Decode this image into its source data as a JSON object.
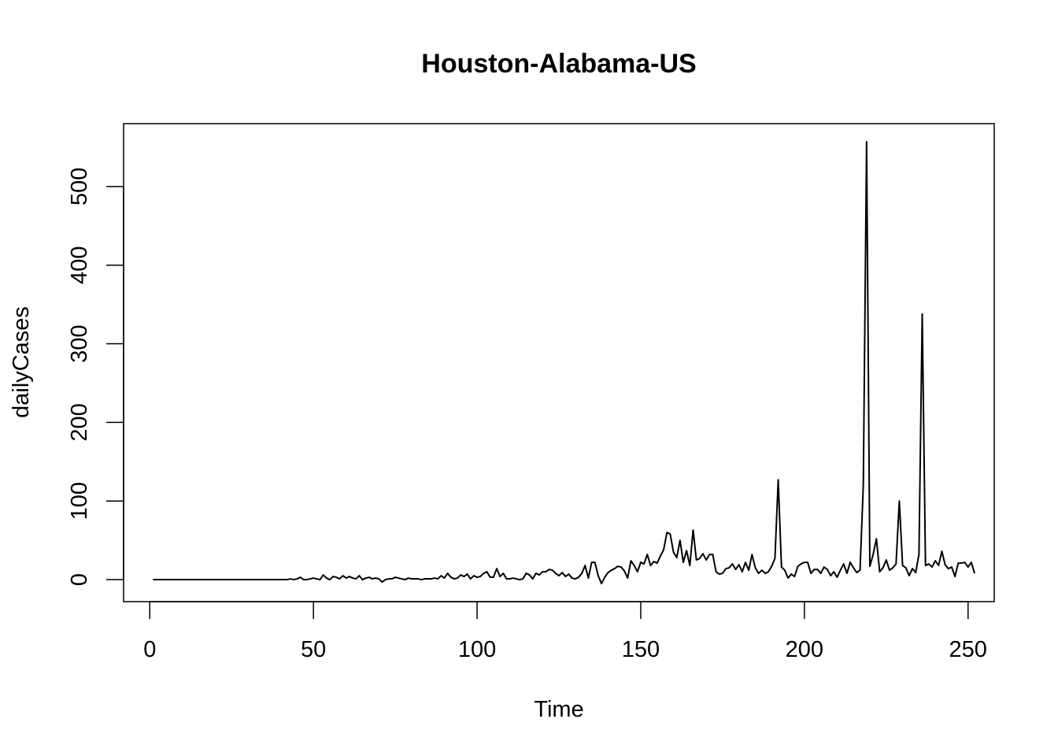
{
  "chart_data": {
    "type": "line",
    "title": "Houston-Alabama-US",
    "xlabel": "Time",
    "ylabel": "dailyCases",
    "xlim": [
      -8,
      258
    ],
    "ylim": [
      -28,
      580
    ],
    "x_ticks": [
      0,
      50,
      100,
      150,
      200,
      250
    ],
    "y_ticks": [
      0,
      100,
      200,
      300,
      400,
      500
    ],
    "grid": false,
    "legend": "none",
    "line_color": "#000000",
    "series": [
      {
        "x_start": 1,
        "values": [
          0,
          0,
          0,
          0,
          0,
          0,
          0,
          0,
          0,
          0,
          0,
          0,
          0,
          0,
          0,
          0,
          0,
          0,
          0,
          0,
          0,
          0,
          0,
          0,
          0,
          0,
          0,
          0,
          0,
          0,
          0,
          0,
          0,
          0,
          0,
          0,
          0,
          0,
          0,
          0,
          0,
          0,
          1,
          0,
          1,
          3,
          0,
          0,
          1,
          2,
          1,
          0,
          6,
          2,
          0,
          4,
          3,
          1,
          5,
          2,
          4,
          2,
          1,
          5,
          0,
          2,
          3,
          1,
          2,
          1,
          -3,
          0,
          1,
          1,
          3,
          2,
          1,
          0,
          2,
          1,
          1,
          1,
          0,
          1,
          1,
          1,
          2,
          1,
          5,
          2,
          8,
          3,
          1,
          2,
          6,
          4,
          7,
          1,
          5,
          3,
          4,
          8,
          10,
          3,
          3,
          14,
          4,
          8,
          1,
          1,
          2,
          1,
          0,
          1,
          8,
          6,
          1,
          8,
          6,
          10,
          10,
          13,
          12,
          8,
          5,
          9,
          4,
          7,
          2,
          1,
          3,
          8,
          18,
          2,
          22,
          22,
          5,
          -5,
          3,
          9,
          12,
          14,
          17,
          16,
          11,
          2,
          24,
          18,
          10,
          22,
          20,
          32,
          18,
          23,
          21,
          30,
          38,
          60,
          58,
          35,
          28,
          50,
          22,
          37,
          18,
          63,
          25,
          27,
          33,
          25,
          32,
          32,
          10,
          7,
          8,
          14,
          15,
          20,
          13,
          19,
          10,
          22,
          12,
          32,
          15,
          8,
          12,
          8,
          10,
          17,
          27,
          127,
          16,
          12,
          2,
          7,
          4,
          17,
          20,
          22,
          22,
          8,
          13,
          13,
          8,
          16,
          13,
          5,
          10,
          3,
          12,
          20,
          8,
          22,
          15,
          9,
          12,
          120,
          557,
          17,
          32,
          52,
          10,
          15,
          25,
          12,
          15,
          20,
          100,
          18,
          15,
          5,
          14,
          9,
          32,
          338,
          18,
          20,
          16,
          24,
          18,
          36,
          19,
          14,
          16,
          4,
          21,
          21,
          22,
          16,
          22,
          8
        ]
      }
    ]
  }
}
